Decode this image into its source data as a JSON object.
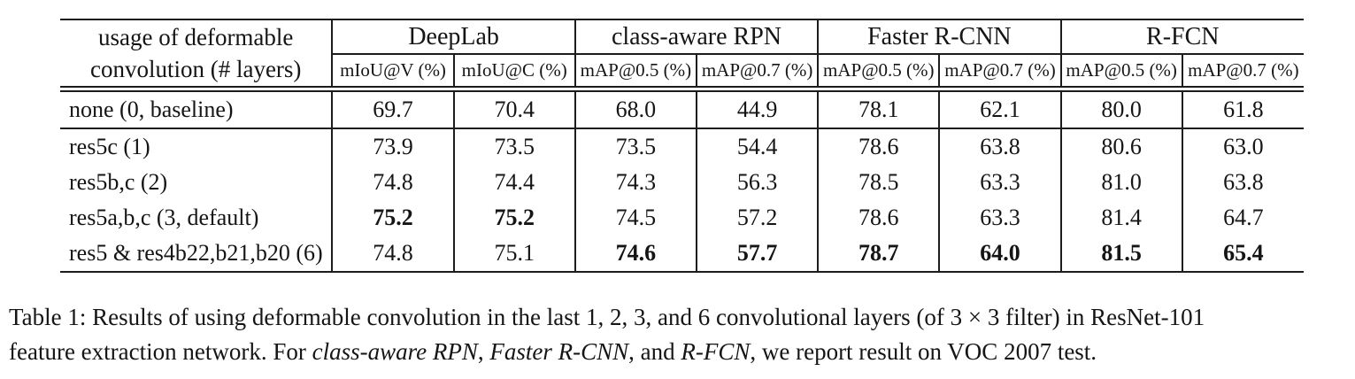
{
  "page": {
    "background_color": "#ffffff",
    "text_color": "#151515",
    "rule_color": "#1c1c1c"
  },
  "table": {
    "row_header": {
      "line1": "usage of deformable",
      "line2": "convolution (# layers)"
    },
    "groups": [
      {
        "label": "DeepLab",
        "subcols": [
          "mIoU@V (%)",
          "mIoU@C (%)"
        ]
      },
      {
        "label": "class-aware RPN",
        "subcols": [
          "mAP@0.5 (%)",
          "mAP@0.7 (%)"
        ]
      },
      {
        "label": "Faster R-CNN",
        "subcols": [
          "mAP@0.5 (%)",
          "mAP@0.7 (%)"
        ]
      },
      {
        "label": "R-FCN",
        "subcols": [
          "mAP@0.5 (%)",
          "mAP@0.7 (%)"
        ]
      }
    ],
    "rows": [
      {
        "label": "none (0, baseline)",
        "values": [
          "69.7",
          "70.4",
          "68.0",
          "44.9",
          "78.1",
          "62.1",
          "80.0",
          "61.8"
        ],
        "bold": [
          false,
          false,
          false,
          false,
          false,
          false,
          false,
          false
        ],
        "rule_below": true
      },
      {
        "label": "res5c (1)",
        "values": [
          "73.9",
          "73.5",
          "73.5",
          "54.4",
          "78.6",
          "63.8",
          "80.6",
          "63.0"
        ],
        "bold": [
          false,
          false,
          false,
          false,
          false,
          false,
          false,
          false
        ],
        "rule_below": false
      },
      {
        "label": "res5b,c (2)",
        "values": [
          "74.8",
          "74.4",
          "74.3",
          "56.3",
          "78.5",
          "63.3",
          "81.0",
          "63.8"
        ],
        "bold": [
          false,
          false,
          false,
          false,
          false,
          false,
          false,
          false
        ],
        "rule_below": false
      },
      {
        "label": "res5a,b,c (3, default)",
        "values": [
          "75.2",
          "75.2",
          "74.5",
          "57.2",
          "78.6",
          "63.3",
          "81.4",
          "64.7"
        ],
        "bold": [
          true,
          true,
          false,
          false,
          false,
          false,
          false,
          false
        ],
        "rule_below": false
      },
      {
        "label": "res5 & res4b22,b21,b20 (6)",
        "values": [
          "74.8",
          "75.1",
          "74.6",
          "57.7",
          "78.7",
          "64.0",
          "81.5",
          "65.4"
        ],
        "bold": [
          false,
          false,
          true,
          true,
          true,
          true,
          true,
          true
        ],
        "rule_below": false
      }
    ]
  },
  "caption": {
    "lines": [
      {
        "segments": [
          {
            "text": "Table 1: Results of using deformable convolution in the last 1, 2, 3, and 6 convolutional layers (of 3 × 3 filter) in ResNet-101",
            "italic": false
          }
        ]
      },
      {
        "segments": [
          {
            "text": "feature extraction network. For ",
            "italic": false
          },
          {
            "text": "class-aware RPN",
            "italic": true
          },
          {
            "text": ", ",
            "italic": false
          },
          {
            "text": "Faster R-CNN",
            "italic": true
          },
          {
            "text": ", and ",
            "italic": false
          },
          {
            "text": "R-FCN",
            "italic": true
          },
          {
            "text": ", we report result on VOC 2007 test.",
            "italic": false
          }
        ]
      }
    ]
  }
}
